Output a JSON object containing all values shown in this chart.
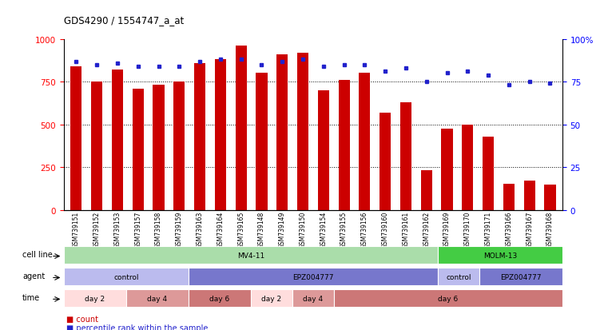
{
  "title": "GDS4290 / 1554747_a_at",
  "samples": [
    "GSM739151",
    "GSM739152",
    "GSM739153",
    "GSM739157",
    "GSM739158",
    "GSM739159",
    "GSM739163",
    "GSM739164",
    "GSM739165",
    "GSM739148",
    "GSM739149",
    "GSM739150",
    "GSM739154",
    "GSM739155",
    "GSM739156",
    "GSM739160",
    "GSM739161",
    "GSM739162",
    "GSM739169",
    "GSM739170",
    "GSM739171",
    "GSM739166",
    "GSM739167",
    "GSM739168"
  ],
  "counts": [
    840,
    750,
    820,
    710,
    730,
    750,
    860,
    880,
    960,
    800,
    910,
    920,
    700,
    760,
    800,
    570,
    630,
    230,
    475,
    500,
    430,
    155,
    170,
    150
  ],
  "percentiles": [
    87,
    85,
    86,
    84,
    84,
    84,
    87,
    88,
    88,
    85,
    87,
    88,
    84,
    85,
    85,
    81,
    83,
    75,
    80,
    81,
    79,
    73,
    75,
    74
  ],
  "bar_color": "#cc0000",
  "dot_color": "#2222cc",
  "ylim_left": [
    0,
    1000
  ],
  "ylim_right": [
    0,
    100
  ],
  "yticks_left": [
    0,
    250,
    500,
    750,
    1000
  ],
  "yticks_right": [
    0,
    25,
    50,
    75,
    100
  ],
  "grid_values": [
    250,
    500,
    750
  ],
  "cell_line_row": {
    "label": "cell line",
    "segments": [
      {
        "text": "MV4-11",
        "start": 0,
        "end": 18,
        "color": "#aaddaa"
      },
      {
        "text": "MOLM-13",
        "start": 18,
        "end": 24,
        "color": "#44cc44"
      }
    ]
  },
  "agent_row": {
    "label": "agent",
    "segments": [
      {
        "text": "control",
        "start": 0,
        "end": 6,
        "color": "#bbbbee"
      },
      {
        "text": "EPZ004777",
        "start": 6,
        "end": 18,
        "color": "#7777cc"
      },
      {
        "text": "control",
        "start": 18,
        "end": 20,
        "color": "#bbbbee"
      },
      {
        "text": "EPZ004777",
        "start": 20,
        "end": 24,
        "color": "#7777cc"
      }
    ]
  },
  "time_row": {
    "label": "time",
    "segments": [
      {
        "text": "day 2",
        "start": 0,
        "end": 3,
        "color": "#ffdddd"
      },
      {
        "text": "day 4",
        "start": 3,
        "end": 6,
        "color": "#dd9999"
      },
      {
        "text": "day 6",
        "start": 6,
        "end": 9,
        "color": "#cc7777"
      },
      {
        "text": "day 2",
        "start": 9,
        "end": 11,
        "color": "#ffdddd"
      },
      {
        "text": "day 4",
        "start": 11,
        "end": 13,
        "color": "#dd9999"
      },
      {
        "text": "day 6",
        "start": 13,
        "end": 24,
        "color": "#cc7777"
      }
    ]
  }
}
